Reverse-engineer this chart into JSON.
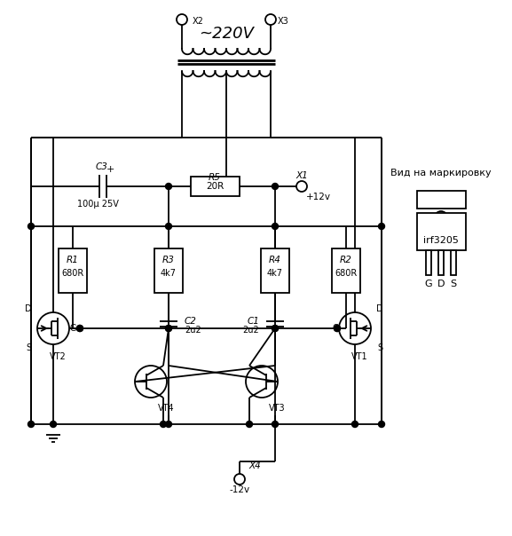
{
  "bg_color": "#ffffff",
  "line_color": "#000000",
  "label_220V": "~220V",
  "label_X1": "X1",
  "label_X2": "X2",
  "label_X3": "X3",
  "label_X4": "X4",
  "label_plus12v": "+12v",
  "label_minus12v": "-12v",
  "label_C3": "C3",
  "label_C3_val": "100μ 25V",
  "label_R5": "R5",
  "label_R5_val": "20R",
  "label_R1": "R1",
  "label_R1_val": "680R",
  "label_R2": "R2",
  "label_R2_val": "680R",
  "label_R3": "R3",
  "label_R3_val": "4k7",
  "label_R4": "R4",
  "label_R4_val": "4k7",
  "label_C1": "C1",
  "label_C1_val": "2u2",
  "label_C2": "C2",
  "label_C2_val": "2u2",
  "label_VT1": "VT1",
  "label_VT2": "VT2",
  "label_VT3": "VT3",
  "label_VT4": "VT4",
  "label_view": "Вид на маркировку",
  "label_irf": "irf3205"
}
